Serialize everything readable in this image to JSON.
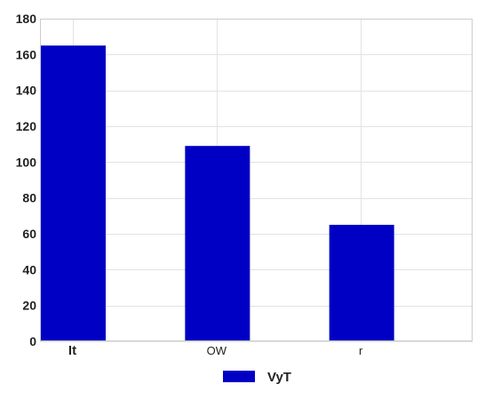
{
  "chart_data": {
    "type": "bar",
    "categories": [
      "It",
      "OW",
      "r"
    ],
    "series": [
      {
        "name": "VyT",
        "values": [
          165,
          109,
          65
        ],
        "color": "#0000c4"
      }
    ],
    "title": "",
    "xlabel": "",
    "ylabel": "",
    "ylim": [
      0,
      180
    ],
    "yticks": [
      0,
      20,
      40,
      60,
      80,
      100,
      120,
      140,
      160,
      180
    ],
    "grid": true,
    "legend": "bottom-center"
  }
}
